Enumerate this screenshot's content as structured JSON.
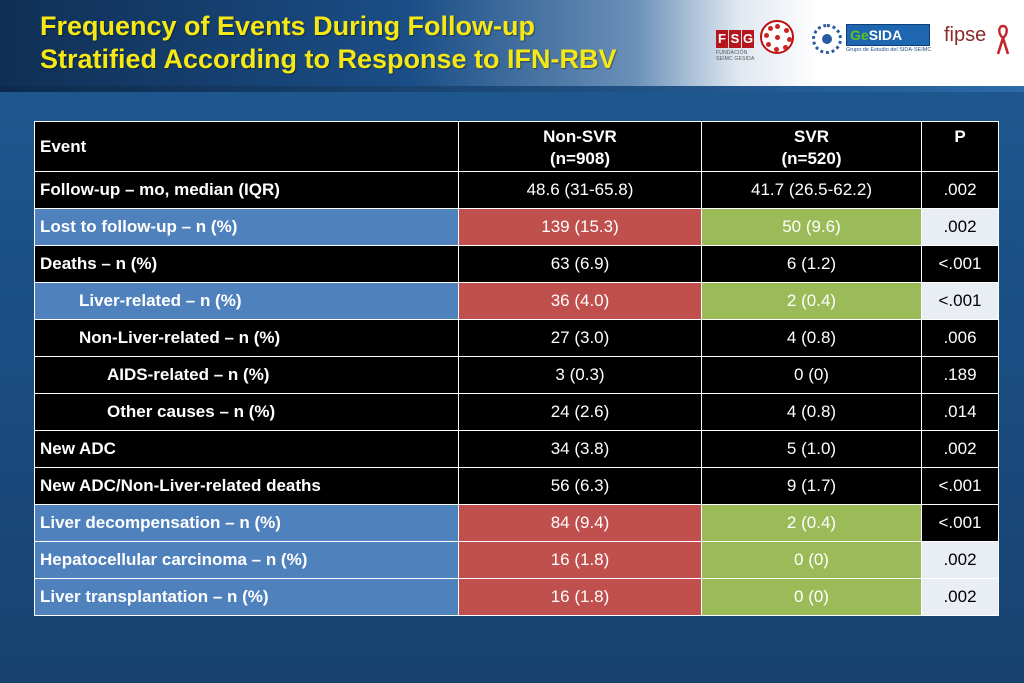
{
  "title": {
    "line1": "Frequency of Events During Follow-up",
    "line2": "Stratified According to Response to IFN-RBV"
  },
  "logos": {
    "fsg_letters": [
      "F",
      "S",
      "G"
    ],
    "fsg_sub": "FUNDACIÓN SEIMC GESIDA",
    "gesida_prefix": "Ge",
    "gesida_suffix": "SIDA",
    "gesida_tag": "Grupo de Estudio del SIDA-SEIMC",
    "fipse": "fipse"
  },
  "colors": {
    "title": "#f5e814",
    "row_blue": "#4f81bd",
    "cell_red": "#c0504d",
    "cell_green": "#9bbb59",
    "header_black": "#000000"
  },
  "table": {
    "headers": {
      "event": "Event",
      "nonsvr": "Non-SVR",
      "nonsvr_n": "(n=908)",
      "svr": "SVR",
      "svr_n": "(n=520)",
      "p": "P"
    },
    "rows": [
      {
        "label": "Follow-up – mo, median (IQR)",
        "nonsvr": "48.6 (31-65.8)",
        "svr": "41.7 (26.5-62.2)",
        "p": ".002"
      },
      {
        "label": "Lost to follow-up – n (%)",
        "nonsvr": "139 (15.3)",
        "svr": "50 (9.6)",
        "p": ".002"
      },
      {
        "label": "Deaths – n (%)",
        "nonsvr": "63 (6.9)",
        "svr": "6 (1.2)",
        "p": "<.001"
      },
      {
        "label": "Liver-related – n (%)",
        "nonsvr": "36 (4.0)",
        "svr": "2 (0.4)",
        "p": "<.001"
      },
      {
        "label": "Non-Liver-related – n (%)",
        "nonsvr": "27 (3.0)",
        "svr": "4 (0.8)",
        "p": ".006"
      },
      {
        "label": "AIDS-related – n (%)",
        "nonsvr": "3 (0.3)",
        "svr": "0 (0)",
        "p": ".189"
      },
      {
        "label": "Other causes – n (%)",
        "nonsvr": "24 (2.6)",
        "svr": "4 (0.8)",
        "p": ".014"
      },
      {
        "label": "New ADC",
        "nonsvr": "34 (3.8)",
        "svr": "5 (1.0)",
        "p": ".002"
      },
      {
        "label": "New ADC/Non-Liver-related deaths",
        "nonsvr": "56 (6.3)",
        "svr": "9 (1.7)",
        "p": "<.001"
      },
      {
        "label": "Liver decompensation – n (%)",
        "nonsvr": "84 (9.4)",
        "svr": "2 (0.4)",
        "p": "<.001"
      },
      {
        "label": "Hepatocellular carcinoma – n (%)",
        "nonsvr": "16 (1.8)",
        "svr": "0 (0)",
        "p": ".002"
      },
      {
        "label": "Liver transplantation – n (%)",
        "nonsvr": "16 (1.8)",
        "svr": "0 (0)",
        "p": ".002"
      }
    ]
  }
}
